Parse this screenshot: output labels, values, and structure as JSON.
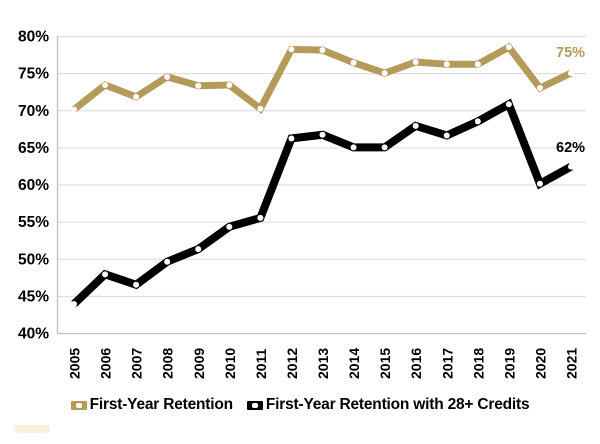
{
  "chart_data": {
    "type": "line",
    "title": "",
    "xlabel": "",
    "ylabel": "",
    "categories": [
      "2005",
      "2006",
      "2007",
      "2008",
      "2009",
      "2010",
      "2011",
      "2012",
      "2013",
      "2014",
      "2015",
      "2016",
      "2017",
      "2018",
      "2019",
      "2020",
      "2021"
    ],
    "series": [
      {
        "name": "First-Year Retention",
        "color": "#B49B5C",
        "line_width": 7,
        "end_label": "75%",
        "values": [
          70.1,
          73.4,
          71.8,
          74.5,
          73.3,
          73.4,
          70.2,
          78.2,
          78.1,
          76.4,
          75.0,
          76.5,
          76.2,
          76.2,
          78.5,
          73.0,
          75.0
        ]
      },
      {
        "name": "First-Year Retention with 28+ Credits",
        "color": "#000000",
        "line_width": 8,
        "end_label": "62%",
        "values": [
          43.9,
          47.9,
          46.5,
          49.6,
          51.3,
          54.3,
          55.5,
          66.2,
          66.7,
          65.0,
          65.0,
          67.9,
          66.6,
          68.5,
          70.8,
          60.1,
          62.4
        ]
      }
    ],
    "ylim": [
      40,
      80
    ],
    "yticks": [
      40,
      45,
      50,
      55,
      60,
      65,
      70,
      75,
      80
    ],
    "ytick_labels": [
      "40%",
      "45%",
      "50%",
      "55%",
      "60%",
      "65%",
      "70%",
      "75%",
      "80%"
    ],
    "grid": true,
    "legend_position": "bottom",
    "marker": "white-filled-circle"
  },
  "styles": {
    "background": "#FFFFFF",
    "gridline_color": "#D9D9D9",
    "axis_color": "#BFBFBF",
    "label_color": "#000000"
  }
}
